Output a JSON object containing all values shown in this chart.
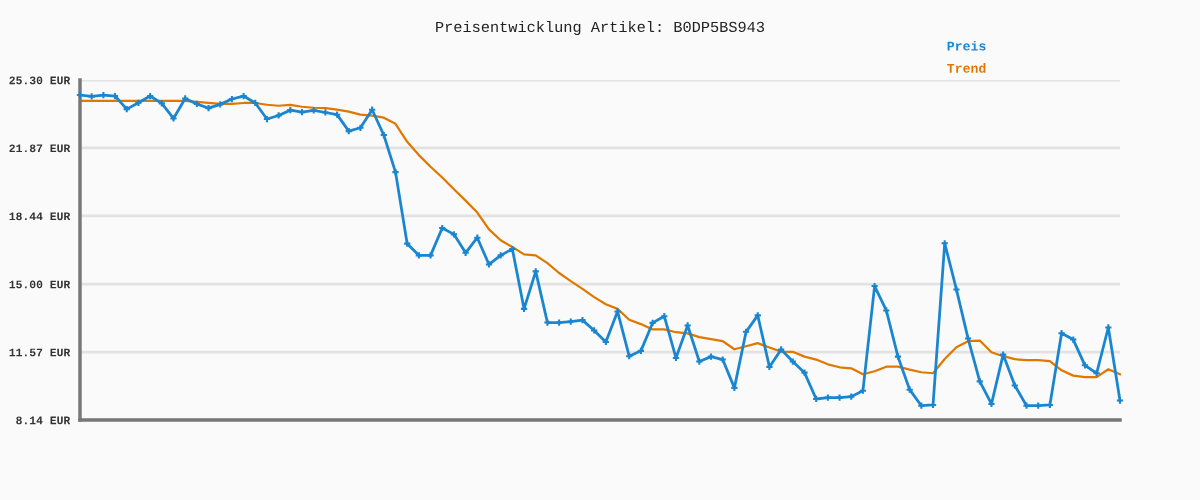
{
  "chart_data": {
    "type": "line",
    "title": "Preisentwicklung Artikel: B0DP5BS943",
    "categories": [
      null,
      null,
      null,
      null,
      null,
      null,
      null,
      null,
      null,
      null,
      null,
      null,
      null,
      null,
      null,
      null,
      null,
      null,
      null,
      null,
      null,
      null,
      null,
      null,
      null,
      null,
      null,
      null,
      null,
      null,
      null,
      null,
      null,
      null,
      null,
      null,
      null,
      null,
      null,
      null,
      null,
      null,
      null,
      null,
      null,
      null,
      null,
      null,
      null,
      null,
      null,
      null,
      null,
      null,
      null,
      null,
      null,
      null,
      null,
      null,
      null,
      null,
      null,
      null,
      null,
      null,
      null,
      null,
      null,
      null,
      null,
      null,
      null,
      null,
      null,
      null,
      null,
      null,
      null,
      null,
      null,
      null,
      null,
      null,
      null,
      null,
      null,
      null,
      null,
      null
    ],
    "series": [
      {
        "name": "Preis",
        "color": "#1b86d0",
        "marker": "cross",
        "values": [
          24.54,
          24.47,
          24.54,
          24.49,
          23.83,
          24.15,
          24.49,
          24.12,
          23.36,
          24.37,
          24.09,
          23.88,
          24.07,
          24.34,
          24.49,
          24.14,
          23.33,
          23.51,
          23.78,
          23.68,
          23.77,
          23.66,
          23.55,
          22.72,
          22.89,
          23.8,
          22.52,
          20.65,
          17.04,
          16.45,
          16.45,
          17.83,
          17.51,
          16.58,
          17.34,
          15.99,
          16.45,
          16.77,
          13.75,
          15.64,
          13.06,
          13.06,
          13.11,
          13.18,
          12.66,
          12.08,
          13.62,
          11.36,
          11.63,
          13.04,
          13.38,
          11.27,
          12.91,
          11.09,
          11.34,
          11.19,
          9.76,
          12.59,
          13.42,
          10.82,
          11.7,
          11.09,
          10.53,
          9.2,
          9.27,
          9.27,
          9.32,
          9.62,
          14.9,
          13.67,
          11.34,
          9.67,
          8.86,
          8.9,
          17.06,
          14.73,
          12.25,
          10.09,
          8.95,
          11.44,
          9.88,
          8.86,
          8.86,
          8.9,
          12.52,
          12.2,
          10.9,
          10.5,
          12.81,
          9.12
        ]
      },
      {
        "name": "Trend",
        "color": "#e07800",
        "marker": "none",
        "values": [
          24.25,
          24.25,
          24.25,
          24.25,
          24.25,
          24.25,
          24.25,
          24.25,
          24.25,
          24.25,
          24.2,
          24.15,
          24.1,
          24.1,
          24.14,
          24.14,
          24.05,
          24.0,
          24.04,
          23.95,
          23.9,
          23.88,
          23.8,
          23.7,
          23.55,
          23.5,
          23.4,
          23.09,
          22.18,
          21.51,
          20.92,
          20.38,
          19.79,
          19.21,
          18.61,
          17.76,
          17.21,
          16.87,
          16.5,
          16.45,
          16.06,
          15.56,
          15.15,
          14.76,
          14.34,
          13.98,
          13.75,
          13.2,
          12.98,
          12.71,
          12.71,
          12.57,
          12.51,
          12.32,
          12.22,
          12.12,
          11.71,
          11.86,
          12.02,
          11.8,
          11.59,
          11.58,
          11.34,
          11.19,
          10.95,
          10.8,
          10.75,
          10.45,
          10.6,
          10.83,
          10.83,
          10.68,
          10.55,
          10.5,
          11.22,
          11.81,
          12.12,
          12.15,
          11.56,
          11.36,
          11.21,
          11.16,
          11.16,
          11.11,
          10.65,
          10.38,
          10.3,
          10.3,
          10.7,
          10.45
        ]
      }
    ],
    "ylim": [
      8.14,
      25.3
    ],
    "yticks": [
      {
        "value": 8.14,
        "label": "8.14 EUR"
      },
      {
        "value": 11.57,
        "label": "11.57 EUR"
      },
      {
        "value": 15.0,
        "label": "15.00 EUR"
      },
      {
        "value": 18.44,
        "label": "18.44 EUR"
      },
      {
        "value": 21.87,
        "label": "21.87 EUR"
      },
      {
        "value": 25.3,
        "label": "25.30 EUR"
      }
    ],
    "grid": "y",
    "legend": "top right",
    "tick_labels": "y",
    "line_style": "solid"
  }
}
